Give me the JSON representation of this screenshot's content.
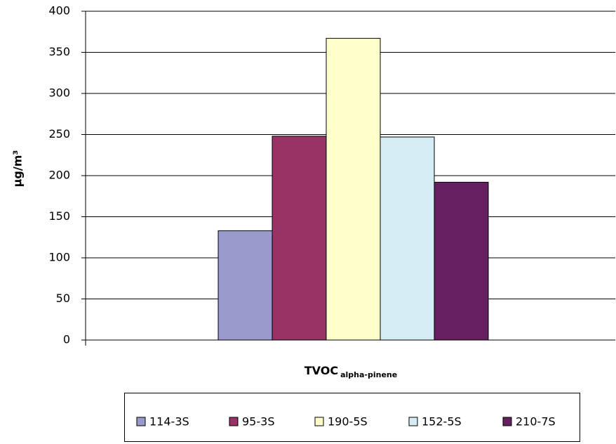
{
  "chart_data": {
    "type": "bar",
    "x_label": "TVOC",
    "x_label_sub": "alpha-pinene",
    "y_label": "µg/m³",
    "categories": [
      null
    ],
    "series": [
      {
        "name": "114-3S",
        "color": "#9999cc",
        "values": [
          133
        ]
      },
      {
        "name": "95-3S",
        "color": "#993366",
        "values": [
          248
        ]
      },
      {
        "name": "190-5S",
        "color": "#ffffcc",
        "values": [
          367
        ]
      },
      {
        "name": "152-5S",
        "color": "#d5edf4",
        "values": [
          247
        ]
      },
      {
        "name": "210-7S",
        "color": "#66205f",
        "values": [
          192
        ]
      }
    ],
    "ylim": [
      0,
      400
    ],
    "yticks": [
      0,
      50,
      100,
      150,
      200,
      250,
      300,
      350,
      400
    ],
    "grid": true,
    "legend": "bottom"
  }
}
